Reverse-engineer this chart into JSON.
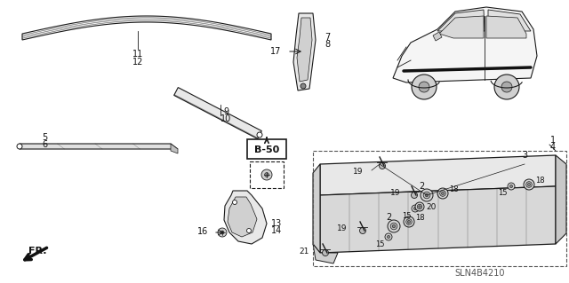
{
  "bg_color": "#ffffff",
  "line_color": "#1a1a1a",
  "diagram_code": "SLN4B4210",
  "fig_w": 6.4,
  "fig_h": 3.19,
  "dpi": 100
}
